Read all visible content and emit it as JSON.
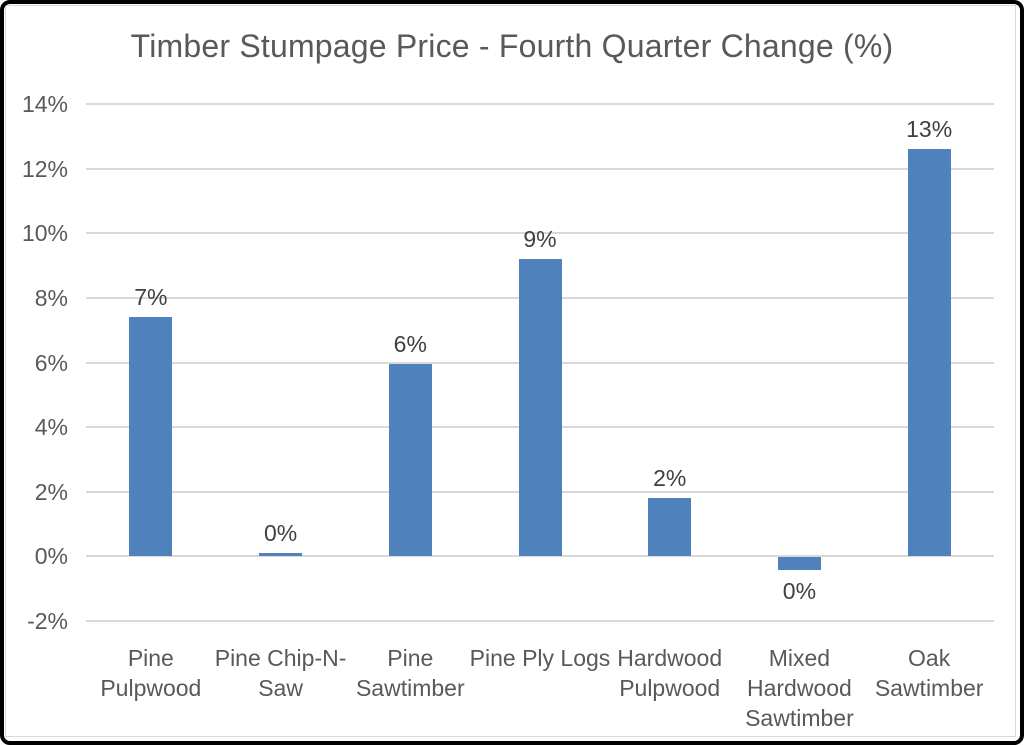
{
  "chart_data": {
    "type": "bar",
    "title": "Timber Stumpage Price - Fourth Quarter Change (%)",
    "categories": [
      [
        "Pine",
        "Pulpwood"
      ],
      [
        "Pine Chip-N-",
        "Saw"
      ],
      [
        "Pine",
        "Sawtimber"
      ],
      [
        "Pine Ply Logs"
      ],
      [
        "Hardwood",
        "Pulpwood"
      ],
      [
        "Mixed",
        "Hardwood",
        "Sawtimber"
      ],
      [
        "Oak",
        "Sawtimber"
      ]
    ],
    "values": [
      7.4,
      0.1,
      5.95,
      9.2,
      1.8,
      -0.4,
      12.6
    ],
    "data_labels": [
      "7%",
      "0%",
      "6%",
      "9%",
      "2%",
      "0%",
      "13%"
    ],
    "y_ticks": [
      {
        "label": "14%",
        "value": 14
      },
      {
        "label": "12%",
        "value": 12
      },
      {
        "label": "10%",
        "value": 10
      },
      {
        "label": "8%",
        "value": 8
      },
      {
        "label": "6%",
        "value": 6
      },
      {
        "label": "4%",
        "value": 4
      },
      {
        "label": "2%",
        "value": 2
      },
      {
        "label": "0%",
        "value": 0
      },
      {
        "label": "-2%",
        "value": -2
      }
    ],
    "ylim": [
      -2,
      14
    ],
    "xlabel": "",
    "ylabel": "",
    "grid": true,
    "legend": "none",
    "colors": {
      "bar": "#4F81BD",
      "title": "#595959",
      "axis_label": "#595959",
      "data_label": "#404040",
      "gridline": "#D9D9D9",
      "frame": "#000000",
      "background": "#FFFFFF"
    }
  }
}
